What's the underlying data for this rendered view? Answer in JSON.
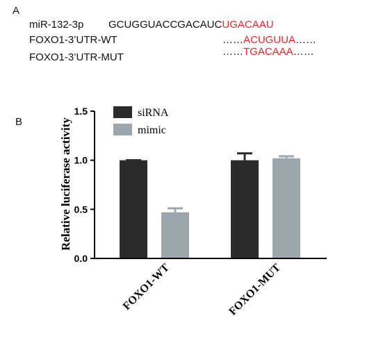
{
  "panel_a": {
    "label": "A",
    "rows": [
      {
        "name": "miR-132-3p",
        "sequence": "GCUGGUACCGACAUC",
        "highlight": "UGACAAU"
      },
      {
        "name": "FOXO1-3’UTR-WT",
        "prefix": "……",
        "highlight": "ACUGUUA",
        "suffix": "……"
      },
      {
        "name": "FOXO1-3’UTR-MUT",
        "prefix": "……",
        "highlight": "TGACAAA",
        "suffix": "……"
      }
    ],
    "highlight_color": "#e8262a"
  },
  "chart_data": {
    "type": "bar",
    "panel_label": "B",
    "ylabel": "Relative luciferase activity",
    "categories": [
      "FOXO1-WT",
      "FOXO1-MUT"
    ],
    "series": [
      {
        "name": "siRNA",
        "color": "#2b2b2b",
        "values": [
          1.0,
          1.0
        ],
        "errors": [
          0,
          0.07
        ]
      },
      {
        "name": "mimic",
        "color": "#9ca6ad",
        "values": [
          0.47,
          1.02
        ],
        "errors": [
          0.04,
          0.02
        ]
      }
    ],
    "ylim": [
      0,
      1.5
    ],
    "yticks": [
      {
        "value": 0,
        "label": "0.0"
      },
      {
        "value": 0.5,
        "label": "0.5"
      },
      {
        "value": 1,
        "label": "1.0"
      },
      {
        "value": 1.5,
        "label": "1.5"
      }
    ]
  }
}
